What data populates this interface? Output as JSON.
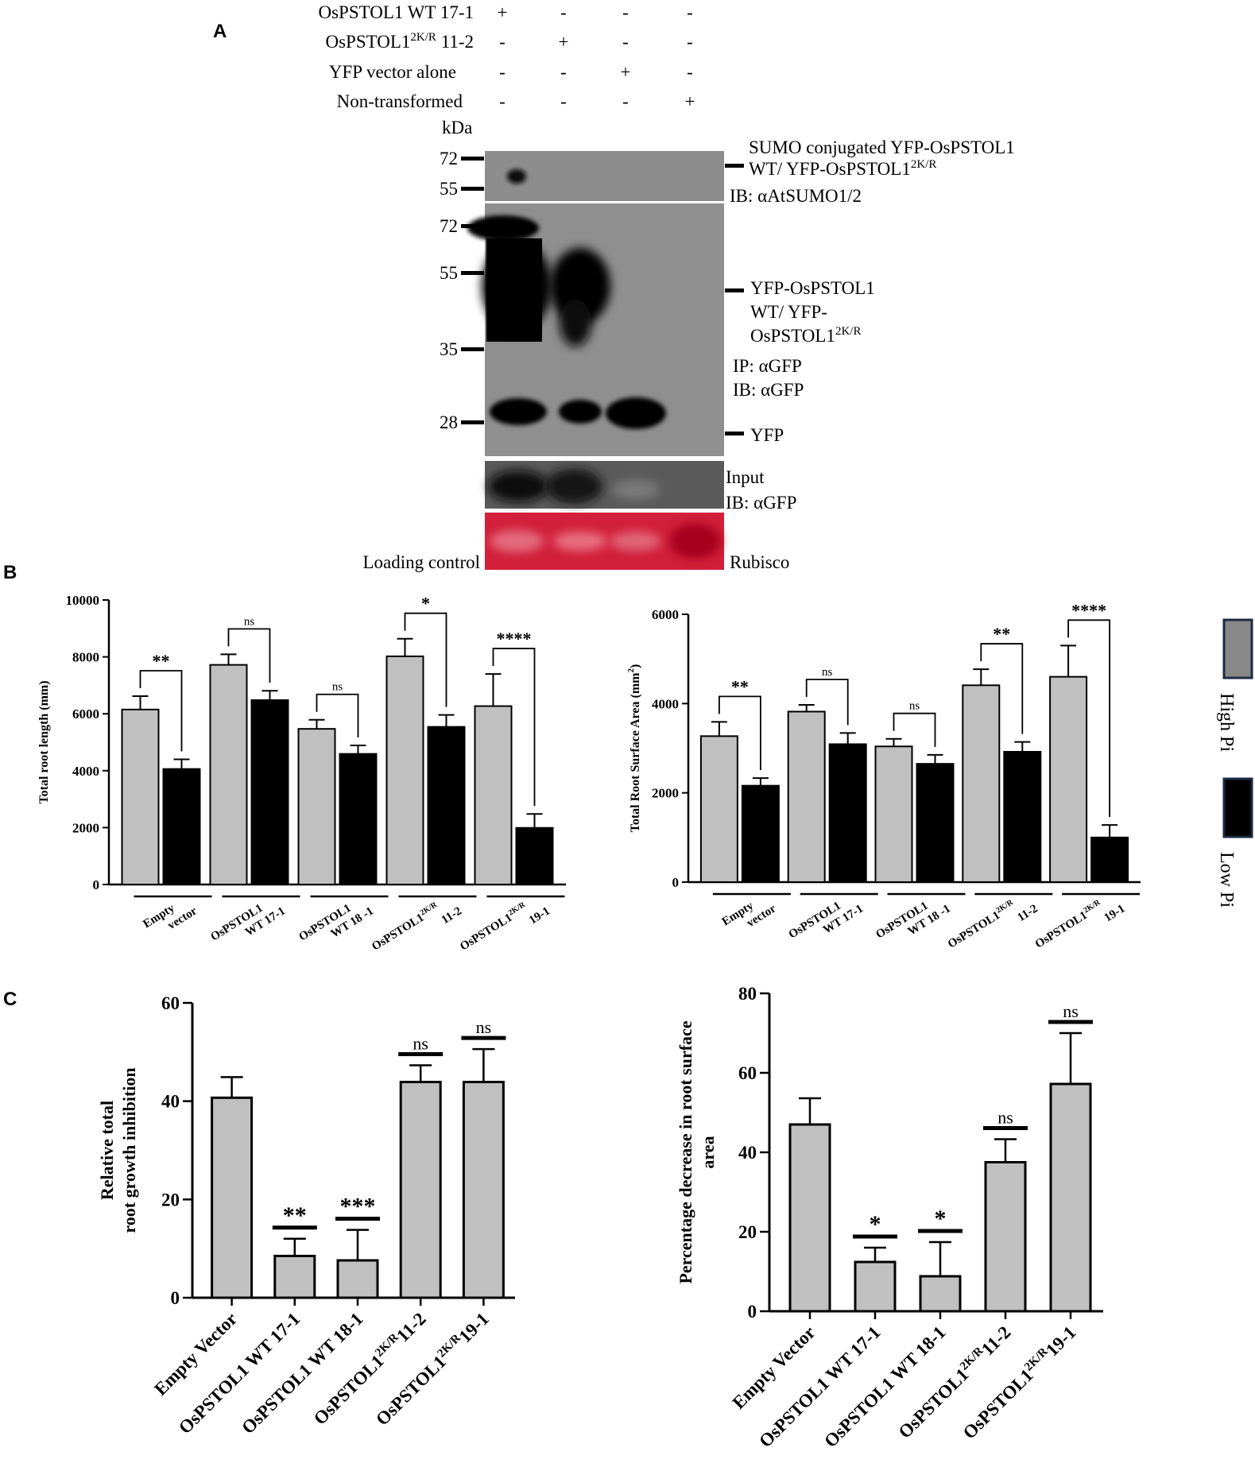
{
  "panel_letters": {
    "a": "A",
    "b": "B",
    "c": "C"
  },
  "blot": {
    "treatment_rows": [
      {
        "label": "OsPSTOL1 WT 17-1",
        "marks": [
          "+",
          "-",
          "-",
          "-"
        ]
      },
      {
        "label_main": "OsPSTOL1",
        "label_sup": "2K/R",
        "label_tail": " 11-2",
        "marks": [
          "-",
          "+",
          "-",
          "-"
        ]
      },
      {
        "label": "YFP vector alone",
        "marks": [
          "-",
          "-",
          "+",
          "-"
        ]
      },
      {
        "label": "Non-transformed",
        "marks": [
          "-",
          "-",
          "-",
          "+"
        ]
      }
    ],
    "kda_label": "kDa",
    "sumo_markers": [
      "72",
      "55"
    ],
    "ip_markers": [
      "72",
      "55",
      "35",
      "28"
    ],
    "sumo_annotation": [
      "SUMO  conjugated  YFP-OsPSTOL1",
      "WT/ YFP-OsPSTOL1",
      "2K/R"
    ],
    "sumo_ib": "IB: αAtSUMO1/2",
    "ip_annotation": [
      "YFP-OsPSTOL1",
      "WT/ YFP-",
      "OsPSTOL1",
      "2K/R"
    ],
    "ip_label": "IP: αGFP",
    "ip_ib": "IB: αGFP",
    "yfp_label": "YFP",
    "input_label": "Input",
    "input_ib": "IB: αGFP",
    "loading_control": "Loading control",
    "rubisco": "Rubisco"
  },
  "legend": {
    "high": "High Pi",
    "low": "Low Pi",
    "high_color": "#888888",
    "low_color": "#000000"
  },
  "colors": {
    "high_pi": "#c0c0c0",
    "low_pi": "#000000",
    "bar_c": "#c0c0c0",
    "rubisco": "#c8102e"
  },
  "chart_data": [
    {
      "type": "bar",
      "ylabel": "Total root length (mm)",
      "ylim": [
        0,
        10000
      ],
      "yticks": [
        "0",
        "2000",
        "4000",
        "6000",
        "8000",
        "10000"
      ],
      "categories": [
        {
          "l1": "Empty",
          "l2": "vector"
        },
        {
          "l1": "OsPSTOL1",
          "l2": "WT 17-1"
        },
        {
          "l1": "OsPSTOL1",
          "l2": "WT 18 -1"
        },
        {
          "l1": "OsPSTOL1",
          "sup": "2K/R",
          "l2": "11-2"
        },
        {
          "l1": "OsPSTOL1",
          "sup": "2K/R",
          "l2": "19-1"
        }
      ],
      "series": [
        {
          "name": "High Pi",
          "values": [
            6150,
            7720,
            5470,
            8020,
            6270
          ],
          "errors": [
            470,
            370,
            320,
            620,
            1130
          ]
        },
        {
          "name": "Low Pi",
          "values": [
            4060,
            6480,
            4590,
            5540,
            1990
          ],
          "errors": [
            340,
            330,
            300,
            420,
            490
          ]
        }
      ],
      "significance": [
        "**",
        "ns",
        "ns",
        "*",
        "****"
      ]
    },
    {
      "type": "bar",
      "ylabel": "Total Root Surface Area (mm",
      "ylabel_sup": "2",
      "ylabel_tail": ")",
      "ylim": [
        0,
        6000
      ],
      "yticks": [
        "0",
        "2000",
        "4000",
        "6000"
      ],
      "categories": [
        {
          "l1": "Empty",
          "l2": "vector"
        },
        {
          "l1": "OsPSTOL1",
          "l2": "WT 17-1"
        },
        {
          "l1": "OsPSTOL1",
          "l2": "WT 18 -1"
        },
        {
          "l1": "OsPSTOL1",
          "sup": "2K/R",
          "l2": "11-2"
        },
        {
          "l1": "OsPSTOL1",
          "sup": "2K/R",
          "l2": "19-1"
        }
      ],
      "series": [
        {
          "name": "High Pi",
          "values": [
            3270,
            3820,
            3040,
            4410,
            4600
          ],
          "errors": [
            320,
            150,
            170,
            360,
            700
          ]
        },
        {
          "name": "Low Pi",
          "values": [
            2160,
            3090,
            2650,
            2920,
            1000
          ],
          "errors": [
            170,
            250,
            200,
            220,
            280
          ]
        }
      ],
      "significance": [
        "**",
        "ns",
        "ns",
        "**",
        "****"
      ]
    },
    {
      "type": "bar",
      "ylabel_lines": [
        "Relative total",
        "root growth inhibition"
      ],
      "ylim": [
        0,
        60
      ],
      "yticks": [
        "0",
        "20",
        "40",
        "60"
      ],
      "categories": [
        {
          "text": "Empty Vector"
        },
        {
          "text": "OsPSTOL1 WT 17-1"
        },
        {
          "text": "OsPSTOL1 WT 18-1"
        },
        {
          "text": "OsPSTOL1",
          "sup": "2K/R",
          "tail": "11-2"
        },
        {
          "text": "OsPSTOL1",
          "sup": "2K/R",
          "tail": "19-1"
        }
      ],
      "values": [
        40.7,
        8.5,
        7.6,
        43.9,
        43.9
      ],
      "errors": [
        4.2,
        3.5,
        6.2,
        3.4,
        6.7
      ],
      "significance": [
        "",
        "**",
        "***",
        "ns",
        "ns"
      ]
    },
    {
      "type": "bar",
      "ylabel_lines": [
        "Percentage decrease in root surface",
        "area"
      ],
      "ylim": [
        0,
        80
      ],
      "yticks": [
        "0",
        "20",
        "40",
        "60",
        "80"
      ],
      "categories": [
        {
          "text": "Empty Vector"
        },
        {
          "text": "OsPSTOL1 WT 17-1"
        },
        {
          "text": "OsPSTOL1 WT 18-1"
        },
        {
          "text": "OsPSTOL1",
          "sup": "2K/R",
          "tail": "11-2"
        },
        {
          "text": "OsPSTOL1",
          "sup": "2K/R",
          "tail": "19-1"
        }
      ],
      "values": [
        47.0,
        12.4,
        8.8,
        37.5,
        57.2
      ],
      "errors": [
        6.6,
        3.6,
        8.6,
        5.8,
        12.8
      ],
      "significance": [
        "",
        "*",
        "*",
        "ns",
        "ns"
      ]
    }
  ]
}
